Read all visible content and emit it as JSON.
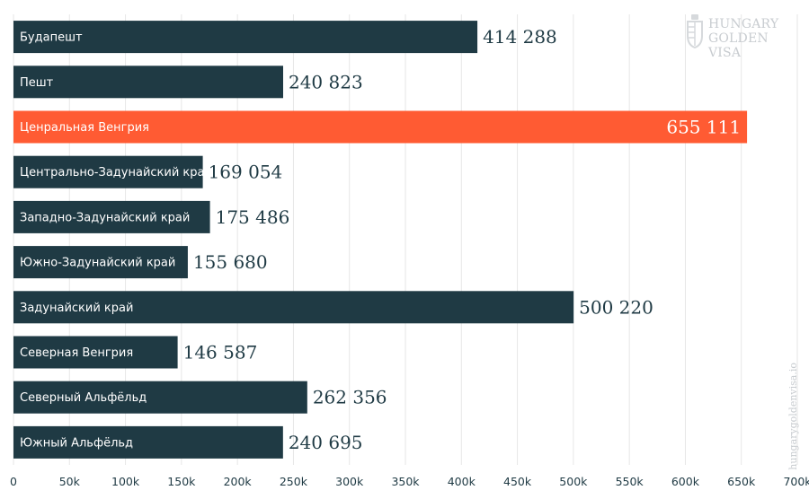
{
  "chart_data": {
    "type": "bar",
    "orientation": "horizontal",
    "categories": [
      "Будапешт",
      "Пешт",
      "Ценральная Венгрия",
      "Центрально-Задунайский край",
      "Западно-Задунайский край",
      "Южно-Задунайский край",
      "Задунайский край",
      "Северная Венгрия",
      "Северный Альфёльд",
      "Южный Альфёльд"
    ],
    "values": [
      414288,
      240823,
      655111,
      169054,
      175486,
      155680,
      500220,
      146587,
      262356,
      240695
    ],
    "value_labels": [
      "414 288",
      "240 823",
      "655 111",
      "169 054",
      "175 486",
      "155 680",
      "500 220",
      "146 587",
      "262 356",
      "240 695"
    ],
    "highlight_index": 2,
    "xlim": [
      0,
      700000
    ],
    "x_ticks": [
      0,
      50000,
      100000,
      150000,
      200000,
      250000,
      300000,
      350000,
      400000,
      450000,
      500000,
      550000,
      600000,
      650000,
      700000
    ],
    "x_tick_labels": [
      "0",
      "50k",
      "100k",
      "150k",
      "200k",
      "250k",
      "300k",
      "350k",
      "400k",
      "450k",
      "500k",
      "550k",
      "600k",
      "650k",
      "700k"
    ],
    "grid": "vertical",
    "colors": {
      "bar": "#1f3a44",
      "highlight": "#ff5b33",
      "grid": "#e6e6e6"
    }
  },
  "branding": {
    "logo_line1": "HUNGARY",
    "logo_line2": "GOLDEN VISA",
    "url": "hungarygoldenvisa.io"
  }
}
